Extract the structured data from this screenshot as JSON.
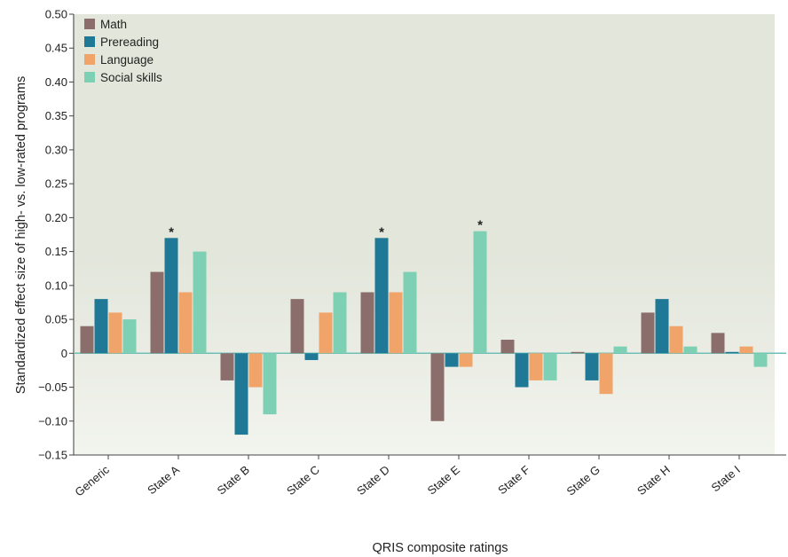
{
  "chart_data": {
    "type": "bar",
    "categories": [
      "Generic",
      "State A",
      "State B",
      "State C",
      "State D",
      "State E",
      "State F",
      "State G",
      "State H",
      "State I"
    ],
    "series": [
      {
        "name": "Math",
        "values": [
          0.04,
          0.12,
          -0.04,
          0.08,
          0.09,
          -0.1,
          0.02,
          0.002,
          0.06,
          0.03
        ]
      },
      {
        "name": "Prereading",
        "values": [
          0.08,
          0.17,
          -0.12,
          -0.01,
          0.17,
          -0.02,
          -0.05,
          -0.04,
          0.08,
          0.002
        ]
      },
      {
        "name": "Language",
        "values": [
          0.06,
          0.09,
          -0.05,
          0.06,
          0.09,
          -0.02,
          -0.04,
          -0.06,
          0.04,
          0.01
        ]
      },
      {
        "name": "Social skills",
        "values": [
          0.05,
          0.15,
          -0.09,
          0.09,
          0.12,
          0.18,
          -0.04,
          0.01,
          0.01,
          -0.02
        ]
      }
    ],
    "colors": {
      "Math": "#8b6d6b",
      "Prereading": "#1e7896",
      "Language": "#f0a46a",
      "Social skills": "#7dd0b4"
    },
    "significance_markers": [
      {
        "category": "State A",
        "series": "Prereading",
        "label": "*"
      },
      {
        "category": "State D",
        "series": "Prereading",
        "label": "*"
      },
      {
        "category": "State E",
        "series": "Social skills",
        "label": "*"
      }
    ],
    "ylim": [
      -0.15,
      0.5
    ],
    "yticks": [
      "0.50",
      "0.45",
      "0.40",
      "0.35",
      "0.30",
      "0.25",
      "0.20",
      "0.15",
      "0.10",
      "0.05",
      "0",
      "−0.05",
      "−0.10",
      "−0.15"
    ],
    "ytick_values": [
      0.5,
      0.45,
      0.4,
      0.35,
      0.3,
      0.25,
      0.2,
      0.15,
      0.1,
      0.05,
      0,
      -0.05,
      -0.1,
      -0.15
    ],
    "xlabel": "QRIS composite ratings",
    "ylabel": "Standardized effect size of high- vs. low-rated programs",
    "legend_position": "top-left",
    "grid": false
  }
}
